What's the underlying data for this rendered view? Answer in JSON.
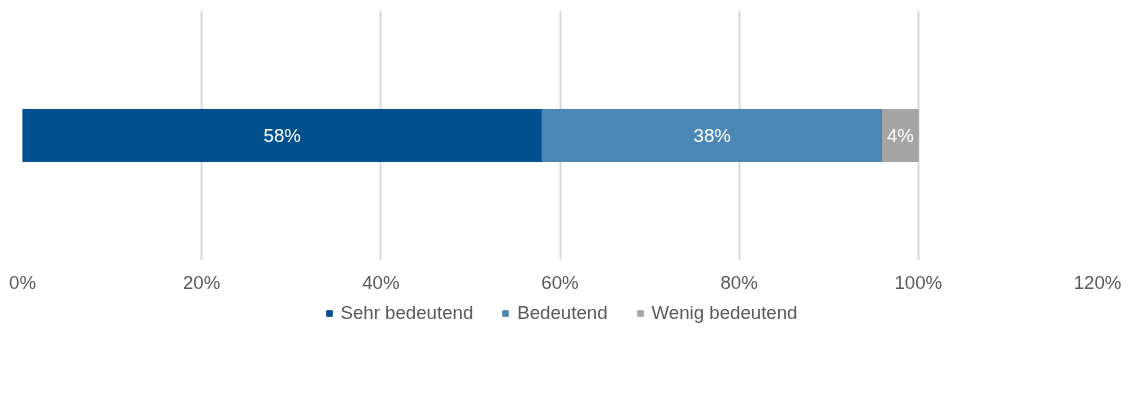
{
  "chart_data": {
    "type": "bar",
    "orientation": "horizontal",
    "stacked": true,
    "categories": [
      null
    ],
    "series": [
      {
        "name": "Sehr bedeutend",
        "color": "#004f8f",
        "values": [
          58
        ],
        "value_labels": [
          "58%"
        ]
      },
      {
        "name": "Bedeutend",
        "color": "#4a87b5",
        "values": [
          38
        ],
        "value_labels": [
          "38%"
        ]
      },
      {
        "name": "Wenig bedeutend",
        "color": "#a5a5a5",
        "values": [
          4
        ],
        "value_labels": [
          "4%"
        ]
      }
    ],
    "xlim": [
      0,
      120
    ],
    "xticks": [
      {
        "value": 0,
        "label": "0%"
      },
      {
        "value": 20,
        "label": "20%"
      },
      {
        "value": 40,
        "label": "40%"
      },
      {
        "value": 60,
        "label": "60%"
      },
      {
        "value": 80,
        "label": "80%"
      },
      {
        "value": 100,
        "label": "100%"
      },
      {
        "value": 120,
        "label": "120%"
      }
    ],
    "grid": "x",
    "legend": "bottom"
  }
}
